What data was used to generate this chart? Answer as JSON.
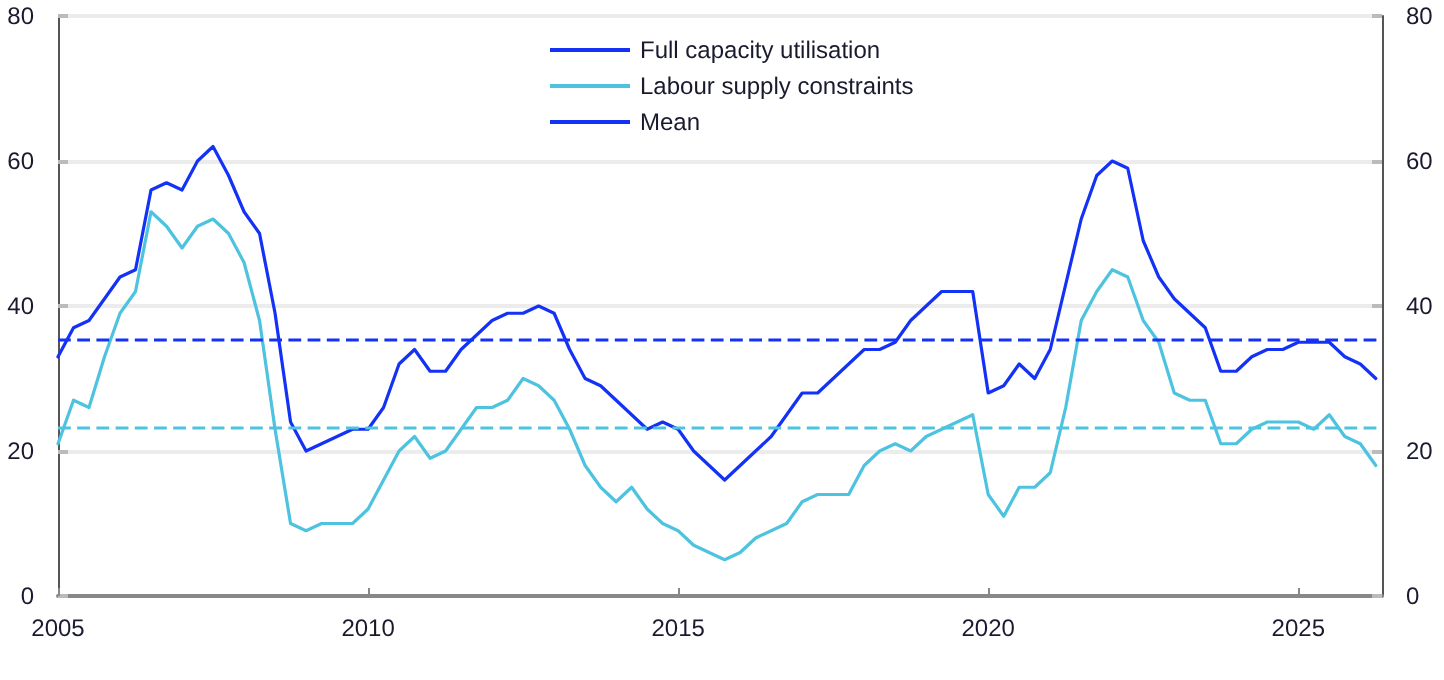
{
  "chart_data": {
    "type": "line",
    "x": [
      2005,
      2005.25,
      2005.5,
      2005.75,
      2006,
      2006.25,
      2006.5,
      2006.75,
      2007,
      2007.25,
      2007.5,
      2007.75,
      2008,
      2008.25,
      2008.5,
      2008.75,
      2009,
      2009.25,
      2009.5,
      2009.75,
      2010,
      2010.25,
      2010.5,
      2010.75,
      2011,
      2011.25,
      2011.5,
      2011.75,
      2012,
      2012.25,
      2012.5,
      2012.75,
      2013,
      2013.25,
      2013.5,
      2013.75,
      2014,
      2014.25,
      2014.5,
      2014.75,
      2015,
      2015.25,
      2015.5,
      2015.75,
      2016,
      2016.25,
      2016.5,
      2016.75,
      2017,
      2017.25,
      2017.5,
      2017.75,
      2018,
      2018.25,
      2018.5,
      2018.75,
      2019,
      2019.25,
      2019.5,
      2019.75,
      2020,
      2020.25,
      2020.5,
      2020.75,
      2021,
      2021.25,
      2021.5,
      2021.75,
      2022,
      2022.25,
      2022.5,
      2022.75,
      2023,
      2023.25,
      2023.5,
      2023.75,
      2024,
      2024.25,
      2024.5,
      2024.75,
      2025,
      2025.25,
      2025.5,
      2025.75,
      2026,
      2026.25
    ],
    "series": [
      {
        "name": "Full capacity utilisation",
        "color": "#1432f5",
        "values": [
          33,
          37,
          38,
          41,
          44,
          45,
          56,
          57,
          56,
          60,
          62,
          58,
          53,
          50,
          39,
          24,
          20,
          21,
          22,
          23,
          23,
          26,
          32,
          34,
          31,
          31,
          34,
          36,
          38,
          39,
          39,
          40,
          39,
          34,
          30,
          29,
          27,
          25,
          23,
          24,
          23,
          20,
          18,
          16,
          18,
          20,
          22,
          25,
          28,
          28,
          30,
          32,
          34,
          34,
          35,
          38,
          40,
          42,
          42,
          42,
          28,
          29,
          32,
          30,
          34,
          43,
          52,
          58,
          60,
          59,
          49,
          44,
          41,
          39,
          37,
          31,
          31,
          33,
          34,
          34,
          35,
          35,
          35,
          33,
          32,
          30
        ]
      },
      {
        "name": "Labour supply constraints",
        "color": "#4dc3e0",
        "values": [
          21,
          27,
          26,
          33,
          39,
          42,
          53,
          51,
          48,
          51,
          52,
          50,
          46,
          38,
          23,
          10,
          9,
          10,
          10,
          10,
          12,
          16,
          20,
          22,
          19,
          20,
          23,
          26,
          26,
          27,
          30,
          29,
          27,
          23,
          18,
          15,
          13,
          15,
          12,
          10,
          9,
          7,
          6,
          5,
          6,
          8,
          9,
          10,
          13,
          14,
          14,
          14,
          18,
          20,
          21,
          20,
          22,
          23,
          24,
          25,
          14,
          11,
          15,
          15,
          17,
          26,
          38,
          42,
          45,
          44,
          38,
          35,
          28,
          27,
          27,
          21,
          21,
          23,
          24,
          24,
          24,
          23,
          25,
          22,
          21,
          18
        ]
      }
    ],
    "ref_lines": [
      {
        "axis": "y",
        "value": 35.5,
        "label": "Mean",
        "color": "#1432f5",
        "line_style": "dashed"
      },
      {
        "axis": "y",
        "value": 23.3,
        "color": "#4dc3e0",
        "line_style": "dashed"
      }
    ],
    "xlim": [
      2005,
      2026.35
    ],
    "xticks": [
      2005,
      2010,
      2015,
      2020,
      2025
    ],
    "ylim": [
      0,
      80
    ],
    "yticks": [
      0,
      20,
      40,
      60,
      80
    ],
    "y2lim": [
      0,
      80
    ],
    "y2ticks": [
      0,
      20,
      40,
      60,
      80
    ],
    "grid": "y",
    "legend": "top",
    "marker": "none",
    "line_style": "solid"
  }
}
